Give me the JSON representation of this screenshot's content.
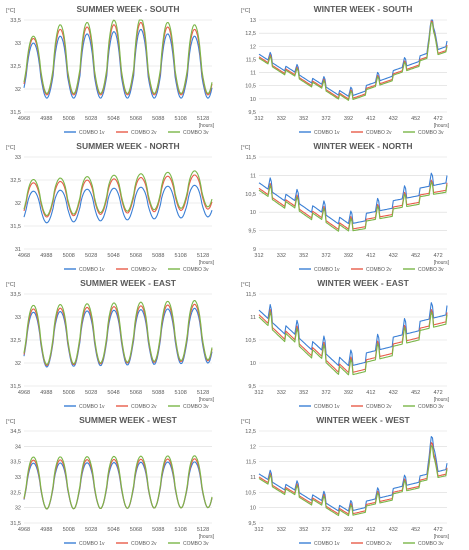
{
  "colors": {
    "combo1": "#3a7fd5",
    "combo2": "#e85c4a",
    "combo3": "#7ab648",
    "grid": "#d9d9d9",
    "text": "#595959"
  },
  "chart_data": [
    {
      "type": "line",
      "title": "SUMMER WEEK - SOUTH",
      "ylabel": "[°C]",
      "xlabel": "[hours]",
      "ylim": [
        31.5,
        33.5
      ],
      "yticks": [
        "31,5",
        "32",
        "32,5",
        "33",
        "33,5"
      ],
      "xlim": [
        4968,
        5136
      ],
      "xticks": [
        "4968",
        "4988",
        "5008",
        "5028",
        "5048",
        "5068",
        "5088",
        "5108",
        "5128"
      ],
      "legend": "bottom",
      "series": [
        {
          "name": "COMBO 1v",
          "baseline": 32.35,
          "amplitude": 0.55,
          "trend": 0.0,
          "peaks": [
            33.0,
            33.15,
            33.2,
            33.25,
            33.3,
            33.2,
            33.15,
            33.25
          ]
        },
        {
          "name": "COMBO 2v",
          "baseline": 32.45,
          "amplitude": 0.58,
          "trend": 0.0,
          "peaks": [
            33.1,
            33.3,
            33.35,
            33.4,
            33.45,
            33.35,
            33.3,
            33.35
          ]
        },
        {
          "name": "COMBO 3v",
          "baseline": 32.5,
          "amplitude": 0.6,
          "trend": 0.0,
          "peaks": [
            33.15,
            33.4,
            33.45,
            33.5,
            33.55,
            33.45,
            33.4,
            33.4
          ]
        }
      ]
    },
    {
      "type": "line",
      "title": "WINTER WEEK - SOUTH",
      "ylabel": "[°C]",
      "xlabel": "[hours]",
      "ylim": [
        9.5,
        13
      ],
      "yticks": [
        "9,5",
        "10",
        "10,5",
        "11",
        "11,5",
        "12",
        "12,5",
        "13"
      ],
      "xlim": [
        312,
        480
      ],
      "xticks": [
        "312",
        "332",
        "352",
        "372",
        "392",
        "412",
        "432",
        "452",
        "472"
      ],
      "legend": "bottom",
      "series": [
        {
          "name": "COMBO 1v",
          "start": 11.7,
          "end": 12.2,
          "trough": 10.0,
          "spike": 12.85
        },
        {
          "name": "COMBO 2v",
          "start": 11.6,
          "end": 12.05,
          "trough": 9.9,
          "spike": 12.75
        },
        {
          "name": "COMBO 3v",
          "start": 11.55,
          "end": 12.0,
          "trough": 9.85,
          "spike": 12.7
        }
      ]
    },
    {
      "type": "line",
      "title": "SUMMER WEEK - NORTH",
      "ylabel": "[°C]",
      "xlabel": "[hours]",
      "ylim": [
        31,
        33
      ],
      "yticks": [
        "31",
        "31,5",
        "32",
        "32,5",
        "33"
      ],
      "xlim": [
        4968,
        5136
      ],
      "xticks": [
        "4968",
        "4988",
        "5008",
        "5028",
        "5048",
        "5068",
        "5088",
        "5108",
        "5128"
      ],
      "legend": "bottom",
      "series": [
        {
          "name": "COMBO 1v",
          "baseline": 31.9,
          "amplitude": 0.35,
          "trend": 0.15
        },
        {
          "name": "COMBO 2v",
          "baseline": 32.05,
          "amplitude": 0.38,
          "trend": 0.2
        },
        {
          "name": "COMBO 3v",
          "baseline": 32.1,
          "amplitude": 0.4,
          "trend": 0.22
        }
      ]
    },
    {
      "type": "line",
      "title": "WINTER WEEK - NORTH",
      "ylabel": "[°C]",
      "xlabel": "[hours]",
      "ylim": [
        9,
        11.5
      ],
      "yticks": [
        "9",
        "9,5",
        "10",
        "10,5",
        "11",
        "11,5"
      ],
      "xlim": [
        312,
        480
      ],
      "xticks": [
        "312",
        "332",
        "352",
        "372",
        "392",
        "412",
        "432",
        "452",
        "472"
      ],
      "legend": "bottom",
      "series": [
        {
          "name": "COMBO 1v",
          "start": 10.8,
          "end": 11.0,
          "trough": 9.6
        },
        {
          "name": "COMBO 2v",
          "start": 10.65,
          "end": 10.8,
          "trough": 9.45
        },
        {
          "name": "COMBO 3v",
          "start": 10.6,
          "end": 10.75,
          "trough": 9.4
        }
      ]
    },
    {
      "type": "line",
      "title": "SUMMER WEEK - EAST",
      "ylabel": "[°C]",
      "xlabel": "[hours]",
      "ylim": [
        31.5,
        33.5
      ],
      "yticks": [
        "31,5",
        "32",
        "32,5",
        "33",
        "33,5"
      ],
      "xlim": [
        4968,
        5136
      ],
      "xticks": [
        "4968",
        "4988",
        "5008",
        "5028",
        "5048",
        "5068",
        "5088",
        "5108",
        "5128"
      ],
      "legend": "bottom",
      "series": [
        {
          "name": "COMBO 1v",
          "baseline": 32.5,
          "amplitude": 0.6,
          "trend": 0.1
        },
        {
          "name": "COMBO 2v",
          "baseline": 32.55,
          "amplitude": 0.62,
          "trend": 0.12
        },
        {
          "name": "COMBO 3v",
          "baseline": 32.6,
          "amplitude": 0.65,
          "trend": 0.12
        }
      ]
    },
    {
      "type": "line",
      "title": "WINTER WEEK - EAST",
      "ylabel": "[°C]",
      "xlabel": "[hours]",
      "ylim": [
        9.5,
        11.5
      ],
      "yticks": [
        "9,5",
        "10",
        "10,5",
        "11",
        "11,5"
      ],
      "xlim": [
        312,
        480
      ],
      "xticks": [
        "312",
        "332",
        "352",
        "372",
        "392",
        "412",
        "432",
        "452",
        "472"
      ],
      "legend": "bottom",
      "series": [
        {
          "name": "COMBO 1v",
          "start": 11.15,
          "end": 11.25,
          "trough": 9.85
        },
        {
          "name": "COMBO 2v",
          "start": 11.05,
          "end": 11.1,
          "trough": 9.7
        },
        {
          "name": "COMBO 3v",
          "start": 11.0,
          "end": 11.05,
          "trough": 9.65
        }
      ]
    },
    {
      "type": "line",
      "title": "SUMMER WEEK - WEST",
      "ylabel": "[°C]",
      "xlabel": "[hours]",
      "ylim": [
        31.5,
        34.5
      ],
      "yticks": [
        "31,5",
        "32",
        "32,5",
        "33",
        "33,5",
        "34",
        "34,5"
      ],
      "xlim": [
        4968,
        5136
      ],
      "xticks": [
        "4968",
        "4988",
        "5008",
        "5028",
        "5048",
        "5068",
        "5088",
        "5108",
        "5128"
      ],
      "legend": "bottom",
      "series": [
        {
          "name": "COMBO 1v",
          "baseline": 32.7,
          "amplitude": 0.75,
          "trend": 0.05
        },
        {
          "name": "COMBO 2v",
          "baseline": 32.75,
          "amplitude": 0.8,
          "trend": 0.05
        },
        {
          "name": "COMBO 3v",
          "baseline": 32.8,
          "amplitude": 0.85,
          "trend": 0.05
        }
      ]
    },
    {
      "type": "line",
      "title": "WINTER WEEK - WEST",
      "ylabel": "[°C]",
      "xlabel": "[hours]",
      "ylim": [
        9.5,
        12.5
      ],
      "yticks": [
        "9,5",
        "10",
        "10,5",
        "11",
        "11,5",
        "12",
        "12,5"
      ],
      "xlim": [
        312,
        480
      ],
      "xticks": [
        "312",
        "332",
        "352",
        "372",
        "392",
        "412",
        "432",
        "452",
        "472"
      ],
      "legend": "bottom",
      "series": [
        {
          "name": "COMBO 1v",
          "start": 11.1,
          "end": 11.45,
          "trough": 9.8,
          "spike": 12.1
        },
        {
          "name": "COMBO 2v",
          "start": 11.0,
          "end": 11.3,
          "trough": 9.7,
          "spike": 11.9
        },
        {
          "name": "COMBO 3v",
          "start": 10.95,
          "end": 11.25,
          "trough": 9.65,
          "spike": 11.8
        }
      ]
    }
  ]
}
